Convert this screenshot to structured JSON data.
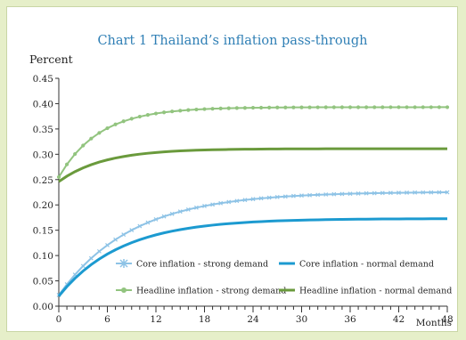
{
  "chart_data": {
    "type": "line",
    "title": "Chart 1  Thailand’s inflation pass-through",
    "ylabel": "Percent",
    "xlabel": "Months",
    "xlim": [
      0,
      48
    ],
    "ylim": [
      0,
      0.45
    ],
    "xticks": [
      0,
      6,
      12,
      18,
      24,
      30,
      36,
      42,
      48
    ],
    "yticks": [
      "0.00",
      "0.05",
      "0.10",
      "0.15",
      "0.20",
      "0.25",
      "0.30",
      "0.35",
      "0.40",
      "0.45"
    ],
    "grid": false,
    "legend_position": "bottom-right inside",
    "series": [
      {
        "name": "Core inflation - strong demand",
        "color": "#8ec3e6",
        "marker": "x",
        "start": 0.022,
        "end": 0.226,
        "rate": 0.11
      },
      {
        "name": "Core inflation - normal demand",
        "color": "#1c9ad0",
        "marker": "none",
        "start": 0.02,
        "end": 0.173,
        "rate": 0.13
      },
      {
        "name": "Headline inflation - strong demand",
        "color": "#92c47f",
        "marker": "dot",
        "start": 0.255,
        "end": 0.393,
        "rate": 0.2
      },
      {
        "name": "Headline inflation - normal demand",
        "color": "#6a9a3c",
        "marker": "none",
        "start": 0.246,
        "end": 0.311,
        "rate": 0.18
      }
    ]
  }
}
